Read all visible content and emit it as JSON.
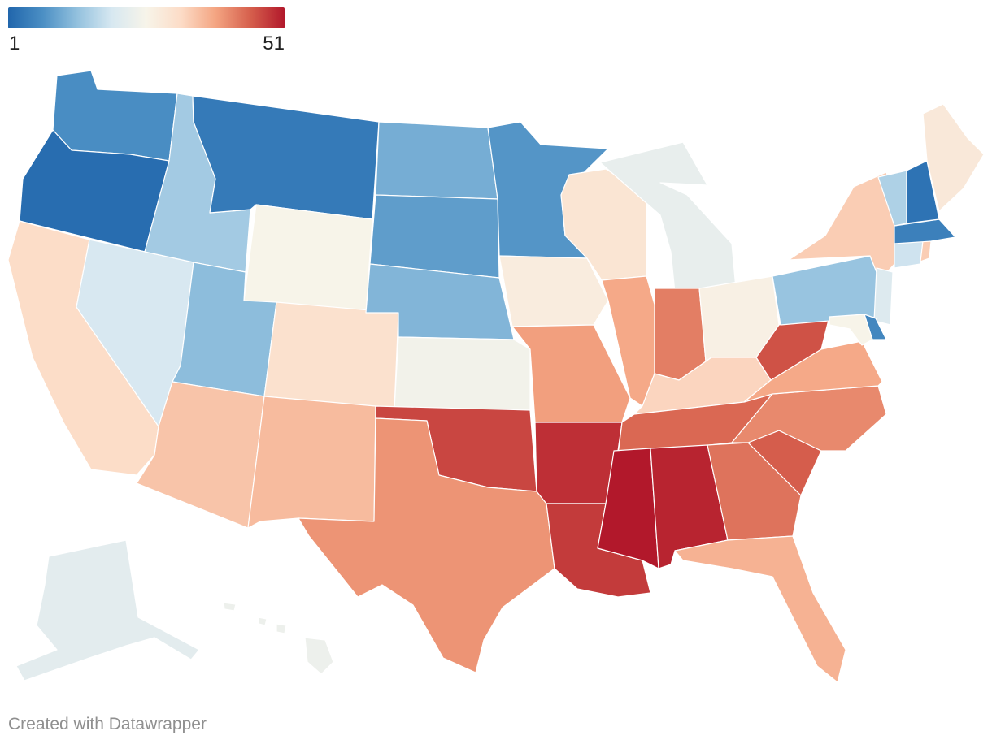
{
  "legend": {
    "min_label": "1",
    "max_label": "51",
    "min_value": 1,
    "max_value": 51,
    "colors": [
      "#2166ac",
      "#4b8fc4",
      "#93c1de",
      "#d7e8f1",
      "#f7f4e9",
      "#fcdcc7",
      "#f4a582",
      "#d6604d",
      "#b2182b"
    ]
  },
  "map_data": {
    "type": "choropleth",
    "region": "United States",
    "value_field": "rank",
    "states": [
      {
        "state": "WA",
        "value": 7
      },
      {
        "state": "OR",
        "value": 2
      },
      {
        "state": "CA",
        "value": 32
      },
      {
        "state": "ID",
        "value": 15
      },
      {
        "state": "NV",
        "value": 20
      },
      {
        "state": "MT",
        "value": 4
      },
      {
        "state": "WY",
        "value": 26
      },
      {
        "state": "UT",
        "value": 13
      },
      {
        "state": "AZ",
        "value": 35
      },
      {
        "state": "CO",
        "value": 31
      },
      {
        "state": "NM",
        "value": 36
      },
      {
        "state": "ND",
        "value": 11
      },
      {
        "state": "SD",
        "value": 9
      },
      {
        "state": "NE",
        "value": 12
      },
      {
        "state": "KS",
        "value": 25
      },
      {
        "state": "OK",
        "value": 47
      },
      {
        "state": "TX",
        "value": 40
      },
      {
        "state": "MN",
        "value": 8
      },
      {
        "state": "IA",
        "value": 28
      },
      {
        "state": "MO",
        "value": 39
      },
      {
        "state": "AR",
        "value": 49
      },
      {
        "state": "LA",
        "value": 48
      },
      {
        "state": "WI",
        "value": 30
      },
      {
        "state": "IL",
        "value": 38
      },
      {
        "state": "MI",
        "value": 23
      },
      {
        "state": "IN",
        "value": 42
      },
      {
        "state": "OH",
        "value": 27
      },
      {
        "state": "KY",
        "value": 33
      },
      {
        "state": "TN",
        "value": 44
      },
      {
        "state": "MS",
        "value": 51
      },
      {
        "state": "AL",
        "value": 50
      },
      {
        "state": "GA",
        "value": 43
      },
      {
        "state": "FL",
        "value": 37
      },
      {
        "state": "SC",
        "value": 45
      },
      {
        "state": "NC",
        "value": 41
      },
      {
        "state": "VA",
        "value": 38
      },
      {
        "state": "WV",
        "value": 46
      },
      {
        "state": "PA",
        "value": 14
      },
      {
        "state": "NY",
        "value": 34
      },
      {
        "state": "VT",
        "value": 16
      },
      {
        "state": "NH",
        "value": 3
      },
      {
        "state": "ME",
        "value": 29
      },
      {
        "state": "MA",
        "value": 5
      },
      {
        "state": "CT",
        "value": 19
      },
      {
        "state": "RI",
        "value": 34
      },
      {
        "state": "NJ",
        "value": 21
      },
      {
        "state": "DE",
        "value": 6
      },
      {
        "state": "MD",
        "value": 26
      },
      {
        "state": "AK",
        "value": 22
      },
      {
        "state": "HI",
        "value": 24
      }
    ]
  },
  "footer": {
    "credit": "Created with Datawrapper"
  }
}
